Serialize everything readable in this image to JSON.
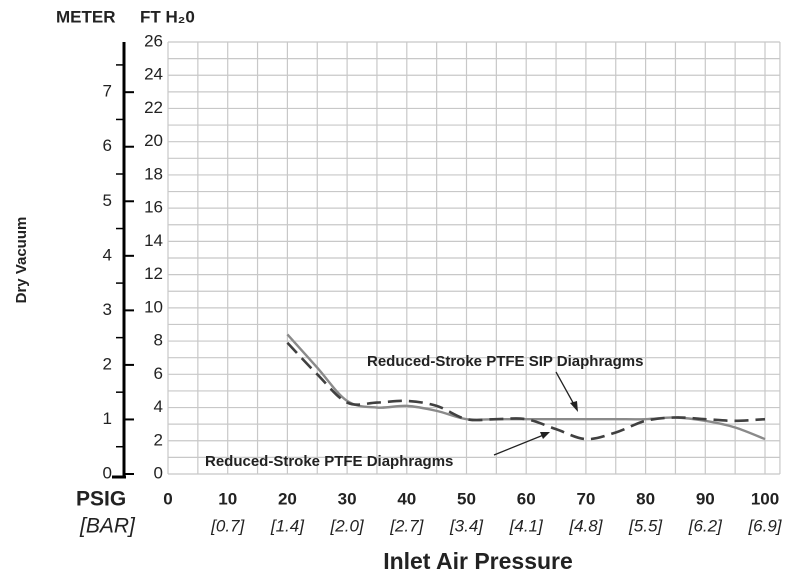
{
  "chart_data": {
    "type": "line",
    "title_y_primary": "FT H₂0",
    "title_y_secondary": "METER",
    "y_label": "Dry Vacuum",
    "x_label": "Inlet Air Pressure",
    "x_unit_primary": "PSIG",
    "x_unit_secondary": "[BAR]",
    "x": [
      20,
      25,
      30,
      35,
      40,
      45,
      50,
      55,
      60,
      65,
      70,
      75,
      80,
      85,
      90,
      95,
      100
    ],
    "series": [
      {
        "name": "Reduced-Stroke PTFE SIP Diaphragms",
        "color": "#8a8a8a",
        "dash": false,
        "values": [
          8.4,
          6.4,
          4.4,
          4.0,
          4.1,
          3.8,
          3.3,
          3.3,
          3.3,
          3.3,
          3.3,
          3.3,
          3.3,
          3.4,
          3.2,
          2.8,
          2.1
        ]
      },
      {
        "name": "Reduced-Stroke PTFE Diaphragms",
        "color": "#404040",
        "dash": true,
        "values": [
          7.9,
          6.0,
          4.3,
          4.3,
          4.4,
          4.1,
          3.3,
          3.3,
          3.3,
          2.7,
          2.1,
          2.5,
          3.2,
          3.4,
          3.3,
          3.2,
          3.3
        ]
      }
    ],
    "xlim": [
      0,
      100
    ],
    "xticks": [
      0,
      10,
      20,
      30,
      40,
      50,
      60,
      70,
      80,
      90,
      100
    ],
    "xticks_secondary": [
      null,
      "[0.7]",
      "[1.4]",
      "[2.0]",
      "[2.7]",
      "[3.4]",
      "[4.1]",
      "[4.8]",
      "[5.5]",
      "[6.2]",
      "[6.9]"
    ],
    "xgrid": [
      0,
      5,
      10,
      15,
      20,
      25,
      30,
      35,
      40,
      45,
      50,
      55,
      60,
      65,
      70,
      75,
      80,
      85,
      90,
      95,
      100,
      102.5
    ],
    "ylim": [
      0,
      26
    ],
    "yticks": [
      0,
      2,
      4,
      6,
      8,
      10,
      12,
      14,
      16,
      18,
      20,
      22,
      24,
      26
    ],
    "ygrid": [
      0,
      1,
      2,
      3,
      4,
      5,
      6,
      7,
      8,
      9,
      10,
      11,
      12,
      13,
      14,
      15,
      16,
      17,
      18,
      19,
      20,
      21,
      22,
      23,
      24,
      25,
      26
    ],
    "y2lim": [
      0,
      7.92
    ],
    "y2ticks": [
      0,
      1,
      2,
      3,
      4,
      5,
      6,
      7
    ],
    "y2minor": [
      0.5,
      1.5,
      2.5,
      3.5,
      4.5,
      5.5,
      6.5,
      7.5
    ]
  }
}
